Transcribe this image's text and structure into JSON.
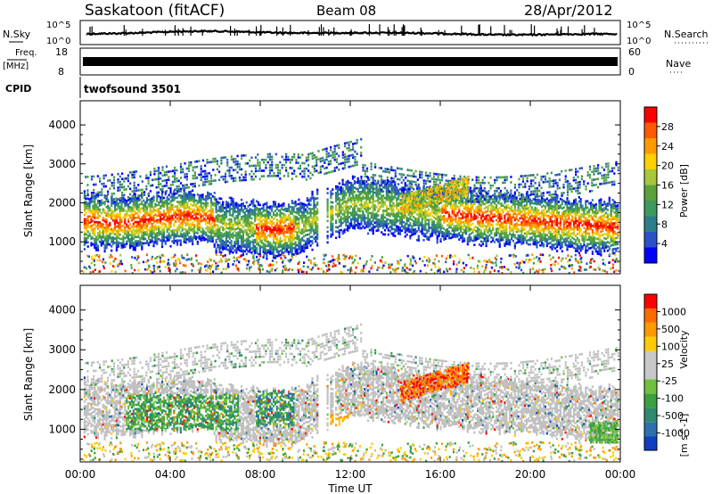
{
  "header": {
    "title": "Saskatoon (fitACF)",
    "beam": "Beam 08",
    "date": "28/Apr/2012"
  },
  "top_panels": {
    "nsky_label": "N.Sky",
    "nsky_ticks": [
      "10^5",
      "10^0"
    ],
    "nsearch_label": "N.Search",
    "nsearch_ticks": [
      "10^5",
      "10^0"
    ],
    "freq_label": "Freq.",
    "freq_unit": "[MHz]",
    "freq_ticks": [
      "18",
      "8"
    ],
    "nave_label": "Nave",
    "nave_ticks": [
      "60",
      "0"
    ],
    "cpid_label": "CPID",
    "cpid_value": "twofsound 3501"
  },
  "chart_data": [
    {
      "type": "heatmap",
      "ylabel": "Slant Range [km]",
      "ylim": [
        180,
        4620
      ],
      "yticks": [
        "4000",
        "3000",
        "2000",
        "1000"
      ],
      "colorbar": {
        "label": "Power [dB]",
        "range": [
          0,
          32
        ],
        "ticks": [
          "28",
          "24",
          "20",
          "16",
          "12",
          "8",
          "4"
        ],
        "colors": [
          "#0000ff",
          "#2a52c8",
          "#2e7d8c",
          "#3d9a5c",
          "#5aa33a",
          "#a6c83a",
          "#ffd000",
          "#ff9a00",
          "#ff5a00",
          "#ff0000"
        ]
      }
    },
    {
      "type": "heatmap",
      "ylabel": "Slant Range [km]",
      "ylim": [
        180,
        4620
      ],
      "yticks": [
        "4000",
        "3000",
        "2000",
        "1000"
      ],
      "colorbar": {
        "label": "Velocity",
        "unit": "[m s^-1]",
        "ticks": [
          "1000",
          "500",
          "100",
          "25",
          "-25",
          "-100",
          "-500",
          "-1000"
        ],
        "colors": [
          "#1040c0",
          "#2d70b0",
          "#2d8a6e",
          "#3aa040",
          "#70c040",
          "#c8c8c8",
          "#c8c8c8",
          "#ffcc00",
          "#ff9900",
          "#ff6a00",
          "#ff0000"
        ]
      }
    }
  ],
  "x_axis": {
    "label": "Time UT",
    "range_hours": [
      0,
      24
    ],
    "ticks": [
      "00:00",
      "04:00",
      "08:00",
      "12:00",
      "16:00",
      "20:00",
      "00:00"
    ]
  },
  "colors": {
    "axis": "#000000",
    "ground_scatter": "#c0c0c0"
  }
}
